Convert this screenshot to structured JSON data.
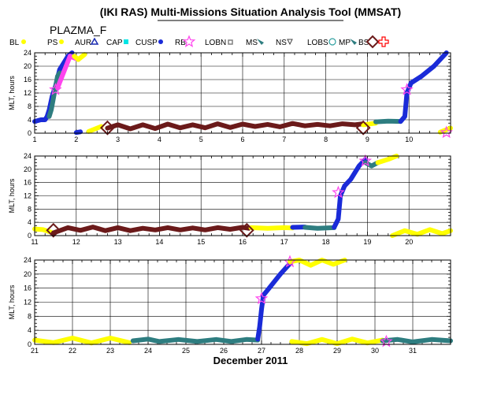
{
  "title": "(IKI RAS) Multi-Missions Situation Analysis Tool (MMSAT)",
  "spacecraft": "PLAZMA_F",
  "legend": [
    {
      "label": "BL",
      "color": "#ffff00",
      "icon": "dot"
    },
    {
      "label": "PS",
      "color": "#ffff00",
      "icon": "dot"
    },
    {
      "label": "AUR",
      "color": "#1a2bb0",
      "icon": "triangle-outline"
    },
    {
      "label": "CAP",
      "color": "#00e5e5",
      "icon": "square"
    },
    {
      "label": "CUSP",
      "color": "#1a2bd8",
      "icon": "dot"
    },
    {
      "label": "RB",
      "color": "#ff44ee",
      "icon": "star-outline"
    },
    {
      "label": "LOBN",
      "color": "#808080",
      "icon": "square-small"
    },
    {
      "label": "MS",
      "color": "#2e7d80",
      "icon": "wedge"
    },
    {
      "label": "NS",
      "color": "#444444",
      "icon": "triangle-small"
    },
    {
      "label": "LOBS",
      "color": "#2fa0a0",
      "icon": "circle-outline"
    },
    {
      "label": "MP",
      "color": "#2e7d80",
      "icon": "wedge"
    },
    {
      "label": "BS",
      "color": "#6b1a1a",
      "icon": "diamond-outline"
    },
    {
      "label": "",
      "color": "#ff0000",
      "icon": "cross-outline"
    }
  ],
  "xlabel": "December 2011",
  "chart_data": [
    {
      "type": "scatter",
      "xlim": [
        1,
        11
      ],
      "x_ticks": [
        "1",
        "2",
        "3",
        "4",
        "5",
        "6",
        "7",
        "8",
        "9",
        "10"
      ],
      "ylabel": "MLT, hours",
      "ylim": [
        0,
        24
      ],
      "y_ticks": [
        "0",
        "4",
        "8",
        "12",
        "16",
        "20",
        "24"
      ],
      "grid": true,
      "segments": [
        {
          "region": "CUSP",
          "color": "#1a2bd8",
          "points": [
            [
              1.0,
              3.5
            ],
            [
              1.15,
              4
            ],
            [
              1.25,
              4
            ],
            [
              1.3,
              5
            ],
            [
              1.35,
              7
            ],
            [
              1.42,
              11
            ],
            [
              1.5,
              14
            ],
            [
              1.6,
              19
            ],
            [
              1.7,
              21
            ],
            [
              1.8,
              23
            ],
            [
              1.9,
              24
            ]
          ]
        },
        {
          "region": "MS",
          "color": "#2e7d80",
          "points": [
            [
              1.35,
              5
            ],
            [
              1.4,
              7
            ],
            [
              1.55,
              17
            ],
            [
              1.6,
              18
            ]
          ]
        },
        {
          "region": "RB",
          "color": "#ff44ee",
          "points": [
            [
              1.55,
              13.5
            ],
            [
              1.85,
              23
            ],
            [
              1.95,
              22.5
            ],
            [
              2.05,
              22
            ]
          ]
        },
        {
          "region": "PS",
          "color": "#ffff00",
          "points": [
            [
              1.95,
              23
            ],
            [
              2.05,
              22
            ],
            [
              2.2,
              23.5
            ]
          ]
        },
        {
          "region": "BL",
          "color": "#ffff00",
          "points": [
            [
              2.3,
              0.5
            ],
            [
              2.5,
              1.5
            ],
            [
              2.6,
              2.0
            ]
          ]
        },
        {
          "region": "CUSP",
          "color": "#1a2bd8",
          "points": [
            [
              2.0,
              0.2
            ],
            [
              2.1,
              0.4
            ]
          ]
        },
        {
          "region": "BS",
          "color": "#6b1a1a",
          "points": [
            [
              2.75,
              1.5
            ],
            [
              3.0,
              2.5
            ],
            [
              3.3,
              1.3
            ],
            [
              3.6,
              2.5
            ],
            [
              3.9,
              1.4
            ],
            [
              4.2,
              2.7
            ],
            [
              4.5,
              1.6
            ],
            [
              4.8,
              2.5
            ],
            [
              5.1,
              1.6
            ],
            [
              5.4,
              2.8
            ],
            [
              5.7,
              1.7
            ],
            [
              6.0,
              2.7
            ],
            [
              6.3,
              2.0
            ],
            [
              6.6,
              2.6
            ],
            [
              6.9,
              1.9
            ],
            [
              7.2,
              2.9
            ],
            [
              7.5,
              2.2
            ],
            [
              7.8,
              2.6
            ],
            [
              8.1,
              2.2
            ],
            [
              8.4,
              2.8
            ],
            [
              8.7,
              2.5
            ],
            [
              8.9,
              2.8
            ]
          ]
        },
        {
          "region": "PS",
          "color": "#ffff00",
          "points": [
            [
              8.9,
              2.5
            ],
            [
              9.2,
              3.0
            ]
          ]
        },
        {
          "region": "MS",
          "color": "#2e7d80",
          "points": [
            [
              9.2,
              3.4
            ],
            [
              9.5,
              3.6
            ],
            [
              9.8,
              3.5
            ]
          ]
        },
        {
          "region": "CUSP",
          "color": "#1a2bd8",
          "points": [
            [
              9.8,
              3.5
            ],
            [
              9.9,
              5
            ],
            [
              9.95,
              12
            ],
            [
              10.05,
              15
            ],
            [
              10.3,
              17
            ],
            [
              10.6,
              20
            ],
            [
              10.9,
              24
            ]
          ]
        },
        {
          "region": "BL",
          "color": "#ffff00",
          "points": [
            [
              10.75,
              0.3
            ],
            [
              11.0,
              1.5
            ]
          ]
        }
      ],
      "bs_markers": [
        2.75,
        8.9
      ],
      "rb_markers": [
        1.5,
        9.95,
        10.9
      ]
    },
    {
      "type": "scatter",
      "xlim": [
        11,
        21
      ],
      "x_ticks": [
        "11",
        "12",
        "13",
        "14",
        "15",
        "16",
        "17",
        "18",
        "19",
        "20"
      ],
      "ylabel": "MLT, hours",
      "ylim": [
        0,
        24
      ],
      "y_ticks": [
        "0",
        "4",
        "8",
        "12",
        "16",
        "20",
        "24"
      ],
      "grid": true,
      "segments": [
        {
          "region": "BL",
          "color": "#ffff00",
          "points": [
            [
              11.0,
              2.0
            ],
            [
              11.2,
              1.8
            ],
            [
              11.4,
              1.0
            ]
          ]
        },
        {
          "region": "BS",
          "color": "#6b1a1a",
          "points": [
            [
              11.45,
              0.8
            ],
            [
              11.8,
              2.4
            ],
            [
              12.1,
              1.6
            ],
            [
              12.4,
              2.6
            ],
            [
              12.7,
              1.5
            ],
            [
              13.0,
              2.4
            ],
            [
              13.3,
              1.5
            ],
            [
              13.6,
              2.2
            ],
            [
              13.9,
              1.7
            ],
            [
              14.2,
              2.4
            ],
            [
              14.5,
              1.7
            ],
            [
              14.8,
              2.3
            ],
            [
              15.1,
              1.7
            ],
            [
              15.4,
              2.4
            ],
            [
              15.7,
              1.9
            ],
            [
              16.0,
              2.5
            ],
            [
              16.15,
              2.2
            ]
          ]
        },
        {
          "region": "PS",
          "color": "#ffff00",
          "points": [
            [
              16.2,
              2.4
            ],
            [
              16.6,
              2.2
            ],
            [
              17.0,
              2.4
            ],
            [
              17.2,
              2.3
            ]
          ]
        },
        {
          "region": "CUSP",
          "color": "#1a2bd8",
          "points": [
            [
              17.2,
              2.5
            ],
            [
              17.5,
              2.6
            ]
          ]
        },
        {
          "region": "MS",
          "color": "#2e7d80",
          "points": [
            [
              17.5,
              2.5
            ],
            [
              17.8,
              2.2
            ],
            [
              18.2,
              2.4
            ]
          ]
        },
        {
          "region": "CUSP",
          "color": "#1a2bd8",
          "points": [
            [
              18.2,
              2.5
            ],
            [
              18.3,
              5
            ],
            [
              18.35,
              12
            ],
            [
              18.45,
              15
            ],
            [
              18.6,
              17
            ],
            [
              18.8,
              21
            ],
            [
              18.95,
              23
            ]
          ]
        },
        {
          "region": "MS",
          "color": "#2e7d80",
          "points": [
            [
              18.95,
              22
            ],
            [
              19.1,
              21
            ],
            [
              19.25,
              22
            ]
          ]
        },
        {
          "region": "PS",
          "color": "#ffff00",
          "points": [
            [
              19.25,
              22
            ],
            [
              19.5,
              23
            ],
            [
              19.7,
              24
            ]
          ]
        },
        {
          "region": "BL",
          "color": "#ffff00",
          "points": [
            [
              19.6,
              0
            ],
            [
              19.9,
              1.5
            ],
            [
              20.2,
              0.4
            ],
            [
              20.5,
              1.8
            ],
            [
              20.8,
              0.6
            ],
            [
              21.0,
              1.5
            ]
          ]
        }
      ],
      "bs_markers": [
        11.45,
        16.1
      ],
      "rb_markers": [
        18.3,
        18.95
      ]
    },
    {
      "type": "scatter",
      "xlim": [
        21,
        32
      ],
      "x_ticks": [
        "21",
        "22",
        "23",
        "24",
        "25",
        "26",
        "27",
        "28",
        "29",
        "30",
        "31"
      ],
      "ylabel": "MLT, hours",
      "ylim": [
        0,
        24
      ],
      "y_ticks": [
        "0",
        "4",
        "8",
        "12",
        "16",
        "20",
        "24"
      ],
      "grid": true,
      "segments": [
        {
          "region": "BL",
          "color": "#ffff00",
          "points": [
            [
              21.0,
              1.2
            ],
            [
              21.5,
              0.5
            ],
            [
              22.0,
              1.8
            ],
            [
              22.5,
              0.4
            ],
            [
              23.0,
              1.8
            ],
            [
              23.5,
              0.5
            ]
          ]
        },
        {
          "region": "MS",
          "color": "#2e7d80",
          "points": [
            [
              23.6,
              1.0
            ],
            [
              24.0,
              1.5
            ],
            [
              24.3,
              0.8
            ],
            [
              24.8,
              1.4
            ],
            [
              25.3,
              0.8
            ],
            [
              25.8,
              1.4
            ],
            [
              26.2,
              0.8
            ],
            [
              26.6,
              1.4
            ],
            [
              26.9,
              1.2
            ]
          ]
        },
        {
          "region": "CUSP",
          "color": "#1a2bd8",
          "points": [
            [
              26.9,
              1.5
            ],
            [
              26.95,
              5
            ],
            [
              27.0,
              10
            ],
            [
              27.05,
              14
            ],
            [
              27.2,
              16
            ],
            [
              27.5,
              20
            ],
            [
              27.75,
              23
            ]
          ]
        },
        {
          "region": "PS",
          "color": "#ffff00",
          "points": [
            [
              27.75,
              23.5
            ],
            [
              28.0,
              24
            ],
            [
              28.3,
              22.5
            ],
            [
              28.6,
              24
            ],
            [
              28.9,
              22.8
            ],
            [
              29.2,
              24
            ]
          ]
        },
        {
          "region": "BL",
          "color": "#ffff00",
          "points": [
            [
              27.8,
              0.8
            ],
            [
              28.2,
              0.2
            ],
            [
              28.6,
              1.4
            ],
            [
              29.0,
              0.2
            ],
            [
              29.4,
              1.5
            ],
            [
              29.8,
              0.4
            ],
            [
              30.2,
              1.2
            ]
          ]
        },
        {
          "region": "MS",
          "color": "#2e7d80",
          "points": [
            [
              30.2,
              1.0
            ],
            [
              30.6,
              1.4
            ],
            [
              31.0,
              0.7
            ],
            [
              31.5,
              1.4
            ],
            [
              32.0,
              1.0
            ]
          ]
        }
      ],
      "bs_markers": [],
      "rb_markers": [
        27.0,
        27.75,
        30.3
      ]
    }
  ]
}
